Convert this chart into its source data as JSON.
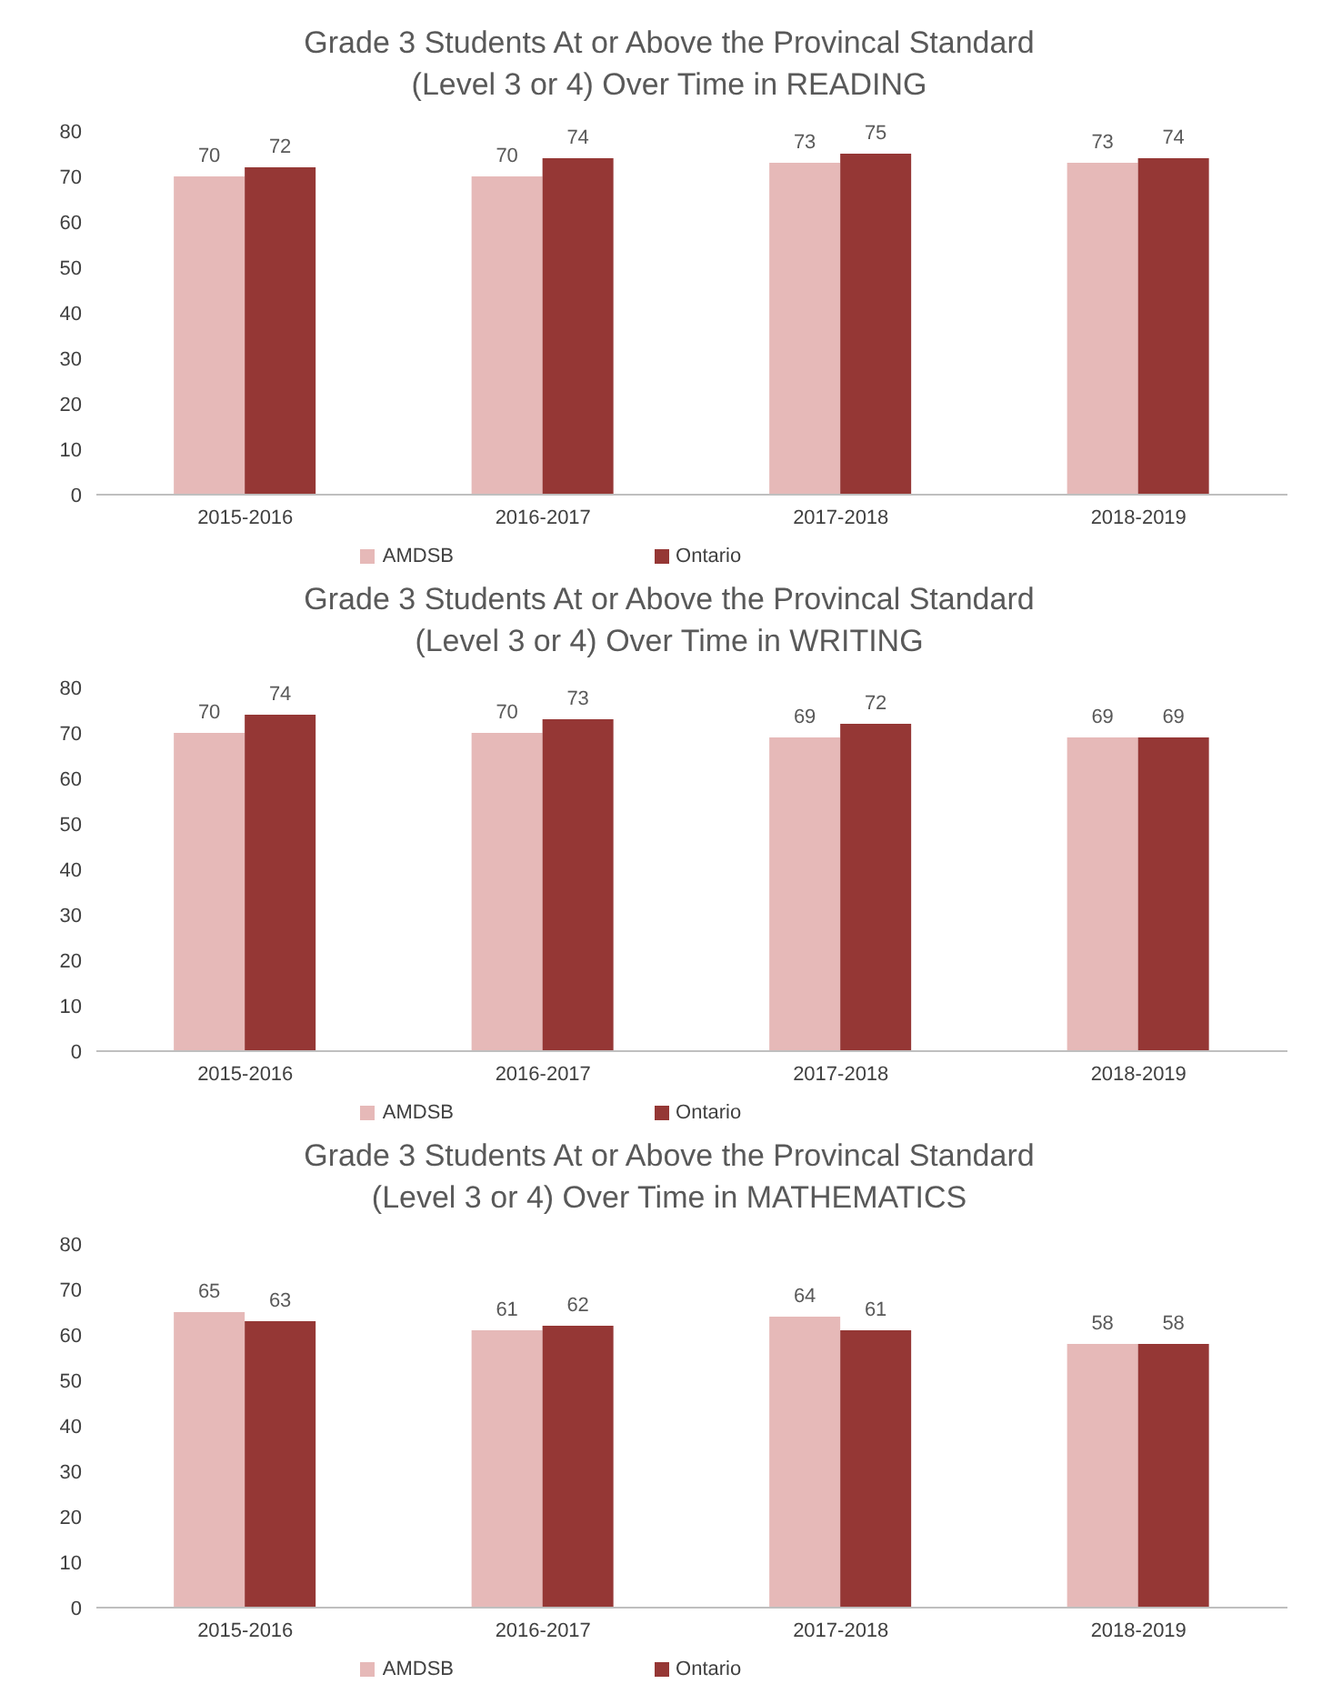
{
  "chart_data": [
    {
      "type": "bar",
      "title": "Grade 3 Students At or Above the Provincal Standard (Level 3 or 4) Over Time in READING",
      "categories": [
        "2015-2016",
        "2016-2017",
        "2017-2018",
        "2018-2019"
      ],
      "series": [
        {
          "name": "AMDSB",
          "color": "#e6b9b8",
          "values": [
            70,
            70,
            73,
            73
          ]
        },
        {
          "name": "Ontario",
          "color": "#953735",
          "values": [
            72,
            74,
            75,
            74
          ]
        }
      ],
      "ylim": [
        0,
        80
      ],
      "yticks": [
        0,
        10,
        20,
        30,
        40,
        50,
        60,
        70,
        80
      ],
      "data_labels": true,
      "legend": "bottom",
      "grid": false
    },
    {
      "type": "bar",
      "title": "Grade 3 Students At or Above the Provincal Standard (Level 3 or 4) Over Time in WRITING",
      "categories": [
        "2015-2016",
        "2016-2017",
        "2017-2018",
        "2018-2019"
      ],
      "series": [
        {
          "name": "AMDSB",
          "color": "#e6b9b8",
          "values": [
            70,
            70,
            69,
            69
          ]
        },
        {
          "name": "Ontario",
          "color": "#953735",
          "values": [
            74,
            73,
            72,
            69
          ]
        }
      ],
      "ylim": [
        0,
        80
      ],
      "yticks": [
        0,
        10,
        20,
        30,
        40,
        50,
        60,
        70,
        80
      ],
      "data_labels": true,
      "legend": "bottom",
      "grid": false
    },
    {
      "type": "bar",
      "title": "Grade 3 Students At or Above the Provincal Standard (Level 3 or 4) Over Time in MATHEMATICS",
      "categories": [
        "2015-2016",
        "2016-2017",
        "2017-2018",
        "2018-2019"
      ],
      "series": [
        {
          "name": "AMDSB",
          "color": "#e6b9b8",
          "values": [
            65,
            61,
            64,
            58
          ]
        },
        {
          "name": "Ontario",
          "color": "#953735",
          "values": [
            63,
            62,
            61,
            58
          ]
        }
      ],
      "ylim": [
        0,
        80
      ],
      "yticks": [
        0,
        10,
        20,
        30,
        40,
        50,
        60,
        70,
        80
      ],
      "data_labels": true,
      "legend": "bottom",
      "grid": false
    }
  ]
}
